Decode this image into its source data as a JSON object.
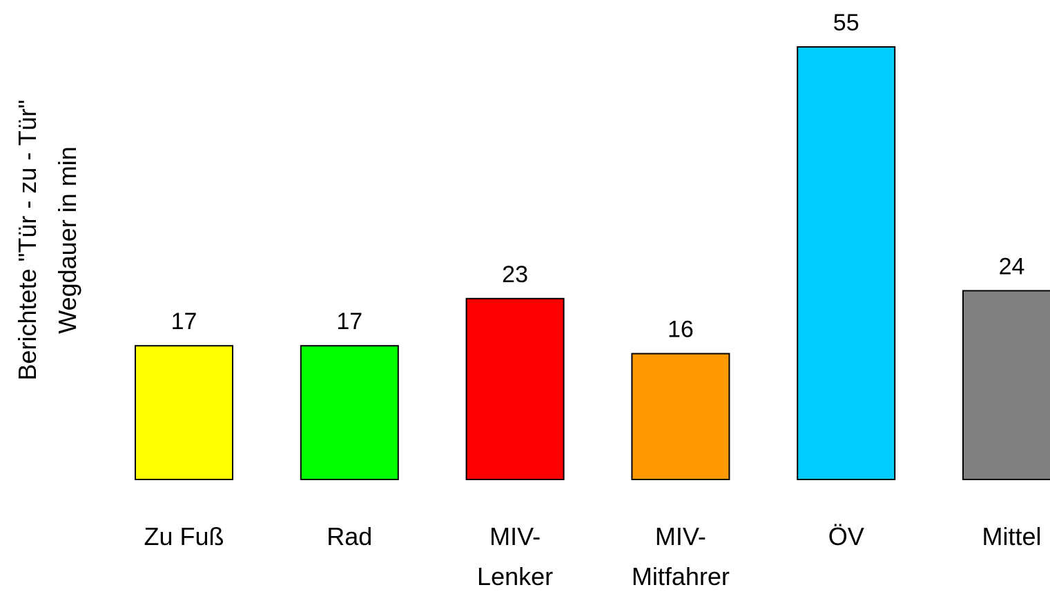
{
  "chart_data": {
    "type": "bar",
    "title": "",
    "ylabel_lines": [
      "Berichtete \"Tür - zu - Tür\"",
      "Wegdauer in min"
    ],
    "xlabel": "",
    "categories": [
      [
        "Zu Fuß"
      ],
      [
        "Rad"
      ],
      [
        "MIV-",
        "Lenker"
      ],
      [
        "MIV-",
        "Mitfahrer"
      ],
      [
        "ÖV"
      ],
      [
        "Mittel"
      ]
    ],
    "values": [
      17,
      17,
      23,
      16,
      55,
      24
    ],
    "value_labels": [
      "17",
      "17",
      "23",
      "16",
      "55",
      "24"
    ],
    "colors": [
      "#FFFF00",
      "#00FF00",
      "#FF0000",
      "#FF9900",
      "#00CCFF",
      "#808080"
    ],
    "ylim": [
      0,
      55
    ],
    "grid": false,
    "legend": "none"
  }
}
